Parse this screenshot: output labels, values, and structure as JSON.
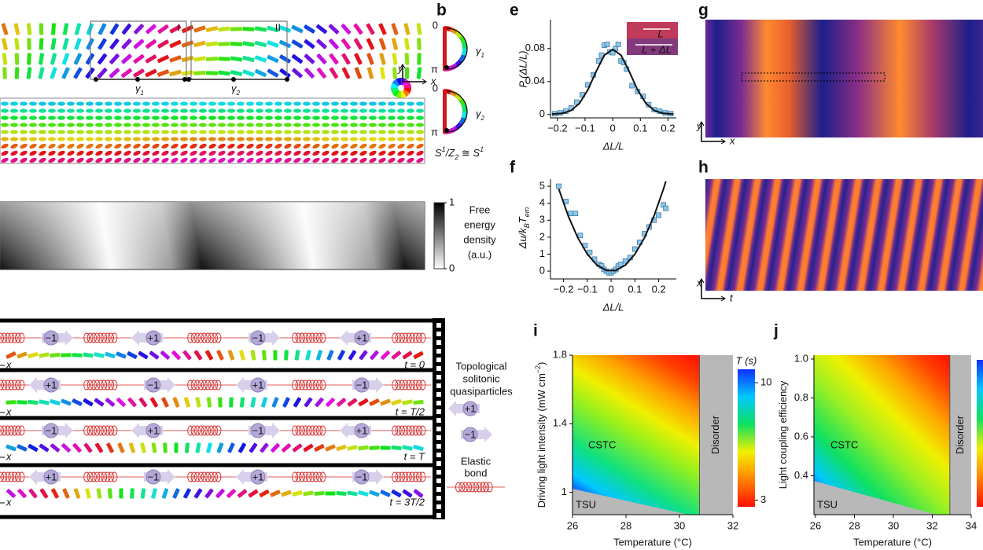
{
  "panel_labels": [
    "b",
    "e",
    "f",
    "g",
    "h",
    "i",
    "j"
  ],
  "panel_a": {
    "boxes": [
      "I",
      "II"
    ],
    "gammas": [
      {
        "symbol": "γ",
        "sub": "1"
      },
      {
        "symbol": "γ",
        "sub": "2"
      }
    ],
    "axes": [
      "y",
      "x"
    ]
  },
  "panel_b": {
    "marks": [
      "0",
      "π",
      "0",
      "π"
    ],
    "gammas": [
      {
        "symbol": "γ",
        "sub": "1"
      },
      {
        "symbol": "γ",
        "sub": "2"
      }
    ],
    "equation": [
      {
        "text": "S"
      },
      {
        "text": "1",
        "sup": true
      },
      {
        "text": "/Z"
      },
      {
        "text": "2",
        "sub": true
      },
      {
        "text": " ≅ S"
      },
      {
        "text": "1",
        "sup": true
      }
    ]
  },
  "energy_colorbar": {
    "title": [
      "Free",
      "energy",
      "density",
      "(a.u.)"
    ],
    "clim": [
      0,
      1
    ],
    "ticks": [
      1,
      0
    ]
  },
  "chart_e": {
    "type": "scatter",
    "xlabel": "ΔL/L",
    "ylabel": "P (ΔL/L)",
    "inset_labels": [
      "L",
      "L + ΔL"
    ],
    "xlim": [
      -0.225,
      0.23
    ],
    "ylim": [
      -0.004,
      0.115
    ],
    "xticks": [
      {
        "value": -0.2,
        "label": "−0.2"
      },
      {
        "value": -0.1,
        "label": "−0.1"
      },
      0,
      0.1,
      0.2
    ],
    "yticks": [
      0,
      0.04,
      0.08
    ],
    "x": [
      -0.21,
      -0.19,
      -0.17,
      -0.15,
      -0.13,
      -0.11,
      -0.09,
      -0.07,
      -0.05,
      -0.04,
      -0.03,
      -0.02,
      -0.01,
      0.0,
      0.01,
      0.02,
      0.03,
      0.04,
      0.05,
      0.07,
      0.09,
      0.11,
      0.13,
      0.15,
      0.17,
      0.19,
      0.21
    ],
    "values": [
      0.001,
      0.002,
      0.004,
      0.008,
      0.015,
      0.024,
      0.036,
      0.048,
      0.065,
      0.072,
      0.084,
      0.085,
      0.076,
      0.075,
      0.08,
      0.085,
      0.065,
      0.063,
      0.055,
      0.035,
      0.028,
      0.022,
      0.012,
      0.006,
      0.004,
      0.002,
      0.001
    ],
    "fit": {
      "x": [
        -0.22,
        -0.18,
        -0.15,
        -0.12,
        -0.09,
        -0.06,
        -0.03,
        0,
        0.03,
        0.06,
        0.09,
        0.12,
        0.15,
        0.18,
        0.22
      ],
      "values": [
        0.0005,
        0.0016,
        0.005,
        0.0136,
        0.0299,
        0.0521,
        0.072,
        0.079,
        0.072,
        0.0521,
        0.0299,
        0.0136,
        0.005,
        0.0016,
        0.0005
      ]
    }
  },
  "chart_f": {
    "type": "scatter",
    "xlabel": "ΔL/L",
    "ylabel": [
      {
        "text": "Δu/k"
      },
      {
        "text": "B",
        "sub": true
      },
      {
        "text": "T"
      },
      {
        "text": "em",
        "sub": true
      }
    ],
    "xlim": [
      -0.255,
      0.274
    ],
    "ylim": [
      -0.46,
      5.42
    ],
    "xticks": [
      {
        "value": -0.2,
        "label": "−0.2"
      },
      {
        "value": -0.1,
        "label": "−0.1"
      },
      0,
      0.1,
      0.2
    ],
    "yticks": [
      0,
      1,
      2,
      3,
      4,
      5
    ],
    "x": [
      -0.22,
      -0.19,
      -0.17,
      -0.15,
      -0.13,
      -0.11,
      -0.09,
      -0.07,
      -0.05,
      -0.04,
      -0.03,
      -0.02,
      -0.01,
      0.0,
      0.01,
      0.02,
      0.03,
      0.04,
      0.06,
      0.08,
      0.1,
      0.12,
      0.14,
      0.16,
      0.18,
      0.2,
      0.22,
      0.23
    ],
    "values": [
      5.0,
      4.1,
      3.4,
      3.4,
      2.1,
      1.5,
      1.1,
      0.7,
      0.4,
      0.3,
      0.1,
      0.0,
      -0.1,
      -0.1,
      0.0,
      0.1,
      0.3,
      0.4,
      0.6,
      0.8,
      1.3,
      1.7,
      2.2,
      2.6,
      3.0,
      3.3,
      3.9,
      3.7
    ],
    "fit": {
      "x": [
        -0.22,
        -0.18,
        -0.14,
        -0.1,
        -0.06,
        -0.02,
        0.02,
        0.06,
        0.1,
        0.14,
        0.18,
        0.22,
        0.23
      ],
      "values": [
        4.84,
        3.24,
        1.96,
        1.0,
        0.36,
        0.04,
        0.04,
        0.36,
        1.0,
        1.96,
        3.24,
        4.84,
        5.29
      ]
    }
  },
  "panel_g": {
    "axes": [
      "y",
      "x"
    ]
  },
  "panel_h": {
    "axes": [
      "x",
      "t"
    ]
  },
  "panel_d": {
    "axis": "x",
    "rows": [
      {
        "time": "t = 0",
        "charges": [
          "−1",
          "+1",
          "−1",
          "+1"
        ]
      },
      {
        "time": "t = T/2",
        "charges": [
          "+1",
          "−1",
          "+1",
          "−1"
        ]
      },
      {
        "time": "t = T",
        "charges": [
          "−1",
          "+1",
          "−1",
          "+1"
        ]
      },
      {
        "time": "t = 3T/2",
        "charges": [
          "+1",
          "−1",
          "+1",
          "−1"
        ]
      }
    ]
  },
  "legend_d": {
    "title": [
      "Topological",
      "solitonic",
      "quasiparticles"
    ],
    "charges": [
      "+1",
      "−1"
    ],
    "bond": [
      "Elastic",
      "bond"
    ]
  },
  "chart_i": {
    "type": "heatmap",
    "xlabel": "Temperature (°C)",
    "ylabel": [
      {
        "text": "Driving light intensity (mW cm"
      },
      {
        "text": "−2",
        "sup": true
      },
      {
        "text": ")"
      }
    ],
    "xlim": [
      26,
      32
    ],
    "ylim": [
      0.87,
      1.8
    ],
    "xticks": [
      26,
      28,
      30,
      32
    ],
    "yticks": [
      1,
      1.4,
      1.8
    ],
    "disorder_onset": 30.75,
    "regions": [
      "CSTC",
      "TSU",
      "Disorder"
    ],
    "colorbar": {
      "title": "T (s)",
      "clim": [
        2.6,
        10.8
      ],
      "ticks": [
        10,
        3
      ]
    }
  },
  "chart_j": {
    "type": "heatmap",
    "xlabel": "Temperature (°C)",
    "ylabel": [
      {
        "text": "Light coupling efficiency"
      }
    ],
    "xlim": [
      25.92,
      34
    ],
    "ylim": [
      0.2,
      1.02
    ],
    "xticks": [
      26,
      28,
      30,
      32,
      34
    ],
    "yticks": [
      0.4,
      0.6,
      0.8,
      {
        "value": 1,
        "label": "1.0"
      }
    ],
    "disorder_onset": 32.9,
    "regions": [
      "CSTC",
      "TSU",
      "Disorder"
    ]
  }
}
